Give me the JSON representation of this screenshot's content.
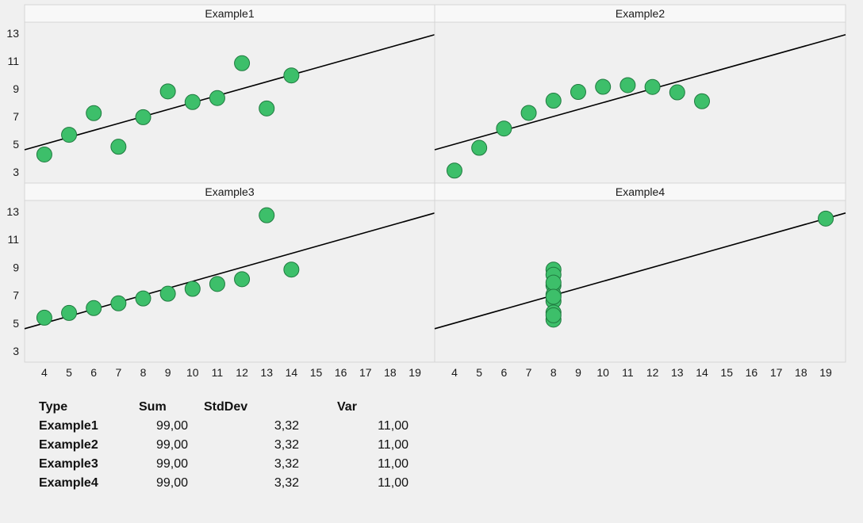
{
  "chart_data": {
    "type": "scatter",
    "layout": "2x2 small multiples with shared axes",
    "xlim": [
      3.2,
      19.8
    ],
    "ylim": [
      2.2,
      13.8
    ],
    "x_ticks": [
      "4",
      "5",
      "6",
      "7",
      "8",
      "9",
      "10",
      "11",
      "12",
      "13",
      "14",
      "15",
      "16",
      "17",
      "18",
      "19"
    ],
    "y_ticks": [
      "3",
      "5",
      "7",
      "9",
      "11",
      "13"
    ],
    "grid": false,
    "marker_color": "#3dbf6a",
    "marker_edge": "#1f7a3f",
    "line_color": "#000000",
    "panels": [
      {
        "title": "Example1",
        "trendline": {
          "slope": 0.5,
          "intercept": 3.0
        },
        "points": [
          {
            "x": 4,
            "y": 4.26
          },
          {
            "x": 5,
            "y": 5.68
          },
          {
            "x": 6,
            "y": 7.24
          },
          {
            "x": 7,
            "y": 4.82
          },
          {
            "x": 8,
            "y": 6.95
          },
          {
            "x": 9,
            "y": 8.81
          },
          {
            "x": 10,
            "y": 8.04
          },
          {
            "x": 11,
            "y": 8.33
          },
          {
            "x": 12,
            "y": 10.84
          },
          {
            "x": 13,
            "y": 7.58
          },
          {
            "x": 14,
            "y": 9.96
          }
        ]
      },
      {
        "title": "Example2",
        "trendline": {
          "slope": 0.5,
          "intercept": 3.0
        },
        "points": [
          {
            "x": 4,
            "y": 3.1
          },
          {
            "x": 5,
            "y": 4.74
          },
          {
            "x": 6,
            "y": 6.13
          },
          {
            "x": 7,
            "y": 7.26
          },
          {
            "x": 8,
            "y": 8.14
          },
          {
            "x": 9,
            "y": 8.77
          },
          {
            "x": 10,
            "y": 9.14
          },
          {
            "x": 11,
            "y": 9.26
          },
          {
            "x": 12,
            "y": 9.13
          },
          {
            "x": 13,
            "y": 8.74
          },
          {
            "x": 14,
            "y": 8.1
          }
        ]
      },
      {
        "title": "Example3",
        "trendline": {
          "slope": 0.5,
          "intercept": 3.0
        },
        "points": [
          {
            "x": 4,
            "y": 5.39
          },
          {
            "x": 5,
            "y": 5.73
          },
          {
            "x": 6,
            "y": 6.08
          },
          {
            "x": 7,
            "y": 6.42
          },
          {
            "x": 8,
            "y": 6.77
          },
          {
            "x": 9,
            "y": 7.11
          },
          {
            "x": 10,
            "y": 7.46
          },
          {
            "x": 11,
            "y": 7.81
          },
          {
            "x": 12,
            "y": 8.15
          },
          {
            "x": 13,
            "y": 12.74
          },
          {
            "x": 14,
            "y": 8.84
          }
        ]
      },
      {
        "title": "Example4",
        "trendline": {
          "slope": 0.5,
          "intercept": 3.0
        },
        "points": [
          {
            "x": 8,
            "y": 6.58
          },
          {
            "x": 8,
            "y": 5.76
          },
          {
            "x": 8,
            "y": 7.71
          },
          {
            "x": 8,
            "y": 8.84
          },
          {
            "x": 8,
            "y": 8.47
          },
          {
            "x": 8,
            "y": 7.04
          },
          {
            "x": 8,
            "y": 5.25
          },
          {
            "x": 19,
            "y": 12.5
          },
          {
            "x": 8,
            "y": 5.56
          },
          {
            "x": 8,
            "y": 7.91
          },
          {
            "x": 8,
            "y": 6.89
          }
        ]
      }
    ]
  },
  "summary_table": {
    "headers": [
      "Type",
      "Sum",
      "StdDev",
      "Var"
    ],
    "rows": [
      {
        "type": "Example1",
        "sum": "99,00",
        "stddev": "3,32",
        "var": "11,00"
      },
      {
        "type": "Example2",
        "sum": "99,00",
        "stddev": "3,32",
        "var": "11,00"
      },
      {
        "type": "Example3",
        "sum": "99,00",
        "stddev": "3,32",
        "var": "11,00"
      },
      {
        "type": "Example4",
        "sum": "99,00",
        "stddev": "3,32",
        "var": "11,00"
      }
    ]
  }
}
